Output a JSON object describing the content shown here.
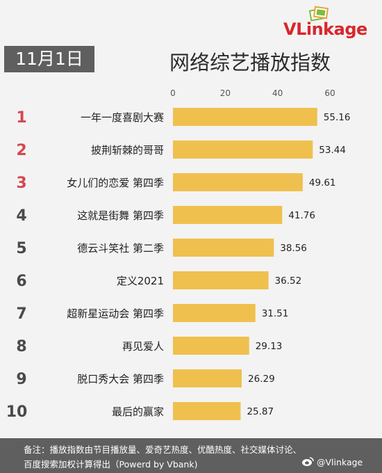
{
  "brand": {
    "name": "VLinkage"
  },
  "date_label": "11月1日",
  "footer": {
    "line1": "备注：播放指数由节目播放量、爱奇艺热度、优酷热度、社交媒体讨论、",
    "line2": "百度搜索加权计算得出（Powerd by Vbank)",
    "handle": "@Vlinkage",
    "handle_icon": "weibo-icon"
  },
  "colors": {
    "bar": "#f0c04e",
    "top_rank": "#d5474f",
    "rank": "#4a4a4a",
    "footer_bg": "#5f5f5f"
  },
  "chart_data": {
    "type": "bar",
    "orientation": "horizontal",
    "title": "网络综艺播放指数",
    "xlim": [
      0,
      60
    ],
    "ticks": [
      0,
      20,
      40,
      60
    ],
    "axis_position": "top",
    "grid": false,
    "ranks": [
      "1",
      "2",
      "3",
      "4",
      "5",
      "6",
      "7",
      "8",
      "9",
      "10"
    ],
    "categories": [
      "一年一度喜剧大赛",
      "披荆斩棘的哥哥",
      "女儿们的恋爱 第四季",
      "这就是街舞 第四季",
      "德云斗笑社 第二季",
      "定义2021",
      "超新星运动会 第四季",
      "再见爱人",
      "脱口秀大会 第四季",
      "最后的赢家"
    ],
    "values": [
      55.16,
      53.44,
      49.61,
      41.76,
      38.56,
      36.52,
      31.51,
      29.13,
      26.29,
      25.87
    ],
    "value_labels": [
      "55.16",
      "53.44",
      "49.61",
      "41.76",
      "38.56",
      "36.52",
      "31.51",
      "29.13",
      "26.29",
      "25.87"
    ]
  }
}
